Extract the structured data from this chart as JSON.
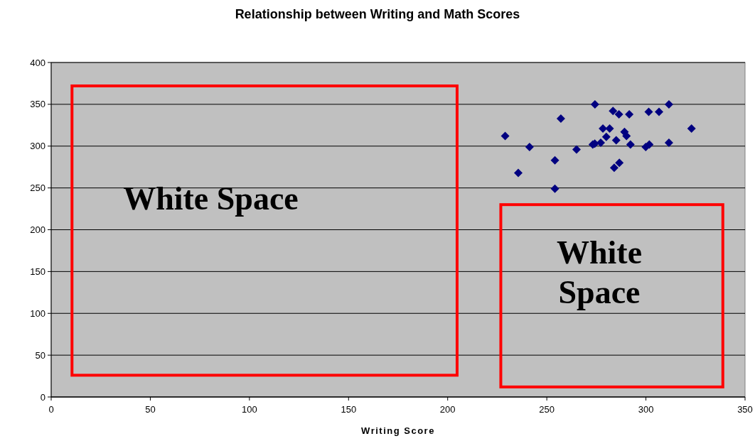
{
  "chart_data": {
    "type": "scatter",
    "title": "Relationship between Writing and Math Scores",
    "xlabel": "Writing Score",
    "x": [
      229.0,
      235.6,
      241.3,
      254.1,
      254.1,
      257.1,
      265.0,
      274.3,
      273.2,
      274.2,
      277.2,
      278.3,
      281.7,
      280.0,
      283.4,
      286.4,
      285.0,
      284.0,
      286.6,
      289.2,
      290.2,
      291.6,
      292.2,
      299.9,
      301.7,
      301.4,
      306.6,
      311.6,
      311.6,
      323.0
    ],
    "series": [
      {
        "color": "#000080",
        "values": [
          312,
          268,
          299,
          283,
          249,
          333,
          296,
          350,
          302,
          303,
          304,
          321,
          321,
          311,
          342,
          338,
          307,
          274,
          280,
          317,
          312,
          338,
          302,
          299,
          302,
          341,
          341,
          350,
          304,
          321
        ]
      }
    ],
    "xlim": [
      0,
      350
    ],
    "xticks": [
      0,
      50,
      100,
      150,
      200,
      250,
      300,
      350
    ],
    "ylim": [
      0,
      400
    ],
    "yticks": [
      0,
      50,
      100,
      150,
      200,
      250,
      300,
      350,
      400
    ],
    "grid": "y",
    "marker": "diamond",
    "annotations": [
      "White Space",
      "White Space"
    ]
  }
}
